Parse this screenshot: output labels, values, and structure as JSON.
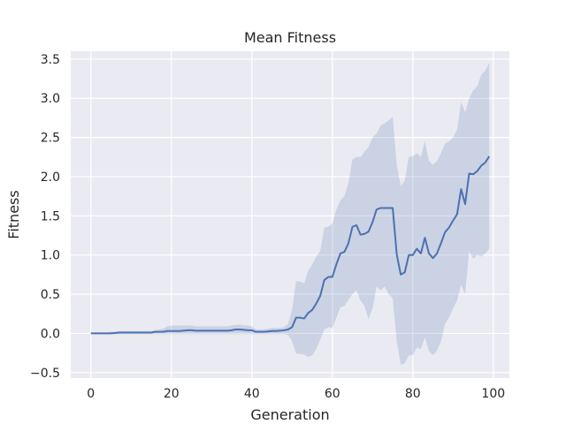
{
  "chart_data": {
    "type": "line",
    "title": "Mean Fitness",
    "xlabel": "Generation",
    "ylabel": "Fitness",
    "xlim": [
      -5,
      104
    ],
    "ylim": [
      -0.57,
      3.6
    ],
    "grid": true,
    "legend": "none",
    "xticks": [
      0,
      20,
      40,
      60,
      80,
      100
    ],
    "xtick_labels": [
      "0",
      "20",
      "40",
      "60",
      "80",
      "100"
    ],
    "yticks": [
      -0.5,
      0.0,
      0.5,
      1.0,
      1.5,
      2.0,
      2.5,
      3.0,
      3.5
    ],
    "ytick_labels": [
      "−0.5",
      "0.0",
      "0.5",
      "1.0",
      "1.5",
      "2.0",
      "2.5",
      "3.0",
      "3.5"
    ],
    "colors": {
      "plot_background": "#eaeaf2",
      "line": "#4c72b0",
      "band": "#4c72b0",
      "grid": "#ffffff",
      "text": "#262626"
    },
    "series": [
      {
        "x": [
          0,
          1,
          2,
          3,
          4,
          5,
          6,
          7,
          8,
          9,
          10,
          11,
          12,
          13,
          14,
          15,
          16,
          17,
          18,
          19,
          20,
          21,
          22,
          23,
          24,
          25,
          26,
          27,
          28,
          29,
          30,
          31,
          32,
          33,
          34,
          35,
          36,
          37,
          38,
          39,
          40,
          41,
          42,
          43,
          44,
          45,
          46,
          47,
          48,
          49,
          50,
          51,
          52,
          53,
          54,
          55,
          56,
          57,
          58,
          59,
          60,
          61,
          62,
          63,
          64,
          65,
          66,
          67,
          68,
          69,
          70,
          71,
          72,
          73,
          74,
          75,
          76,
          77,
          78,
          79,
          80,
          81,
          82,
          83,
          84,
          85,
          86,
          87,
          88,
          89,
          90,
          91,
          92,
          93,
          94,
          95,
          96,
          97,
          98,
          99
        ],
        "y": [
          0.0,
          0.0,
          0.0,
          0.0,
          0.0,
          0.0,
          0.005,
          0.01,
          0.01,
          0.01,
          0.01,
          0.01,
          0.01,
          0.01,
          0.01,
          0.01,
          0.02,
          0.02,
          0.02,
          0.03,
          0.03,
          0.03,
          0.03,
          0.035,
          0.04,
          0.04,
          0.035,
          0.035,
          0.035,
          0.035,
          0.035,
          0.035,
          0.035,
          0.035,
          0.035,
          0.04,
          0.05,
          0.05,
          0.045,
          0.04,
          0.04,
          0.02,
          0.02,
          0.02,
          0.025,
          0.03,
          0.03,
          0.035,
          0.04,
          0.05,
          0.08,
          0.2,
          0.2,
          0.19,
          0.26,
          0.3,
          0.38,
          0.48,
          0.68,
          0.72,
          0.72,
          0.88,
          1.02,
          1.04,
          1.15,
          1.36,
          1.38,
          1.26,
          1.27,
          1.3,
          1.42,
          1.58,
          1.6,
          1.6,
          1.6,
          1.6,
          1.01,
          0.75,
          0.78,
          1.0,
          1.0,
          1.08,
          1.02,
          1.22,
          1.02,
          0.96,
          1.02,
          1.15,
          1.29,
          1.35,
          1.44,
          1.52,
          1.84,
          1.65,
          2.04,
          2.03,
          2.07,
          2.14,
          2.18,
          2.26
        ],
        "lower": [
          -0.01,
          -0.01,
          -0.01,
          -0.01,
          -0.01,
          -0.01,
          -0.01,
          -0.01,
          -0.01,
          -0.01,
          -0.01,
          -0.01,
          -0.01,
          -0.01,
          -0.01,
          -0.01,
          -0.01,
          -0.01,
          -0.01,
          -0.01,
          -0.01,
          -0.01,
          -0.01,
          -0.01,
          -0.01,
          -0.01,
          -0.01,
          -0.01,
          -0.01,
          -0.01,
          -0.01,
          -0.01,
          -0.01,
          -0.01,
          -0.01,
          -0.01,
          -0.01,
          -0.01,
          -0.01,
          -0.01,
          -0.01,
          -0.01,
          -0.01,
          -0.01,
          -0.01,
          -0.01,
          -0.01,
          -0.01,
          -0.01,
          -0.02,
          -0.1,
          -0.26,
          -0.26,
          -0.27,
          -0.3,
          -0.28,
          -0.2,
          -0.08,
          0.05,
          0.08,
          0.07,
          0.2,
          0.33,
          0.35,
          0.43,
          0.5,
          0.55,
          0.42,
          0.35,
          0.18,
          0.32,
          0.6,
          0.55,
          0.6,
          0.5,
          0.45,
          -0.1,
          -0.4,
          -0.38,
          -0.28,
          -0.28,
          -0.18,
          -0.2,
          -0.05,
          -0.22,
          -0.28,
          -0.22,
          -0.1,
          0.12,
          0.2,
          0.32,
          0.42,
          0.62,
          0.5,
          1.05,
          0.95,
          1.0,
          0.98,
          1.02,
          1.08
        ],
        "upper": [
          0.01,
          0.01,
          0.01,
          0.01,
          0.01,
          0.02,
          0.02,
          0.03,
          0.03,
          0.03,
          0.03,
          0.03,
          0.03,
          0.03,
          0.03,
          0.03,
          0.04,
          0.05,
          0.06,
          0.09,
          0.1,
          0.1,
          0.1,
          0.1,
          0.1,
          0.1,
          0.09,
          0.09,
          0.09,
          0.09,
          0.09,
          0.09,
          0.09,
          0.09,
          0.09,
          0.1,
          0.11,
          0.11,
          0.1,
          0.1,
          0.09,
          0.05,
          0.05,
          0.05,
          0.06,
          0.07,
          0.07,
          0.07,
          0.08,
          0.12,
          0.3,
          0.67,
          0.66,
          0.64,
          0.8,
          0.88,
          0.98,
          1.05,
          1.35,
          1.36,
          1.4,
          1.58,
          1.7,
          1.75,
          1.92,
          2.22,
          2.25,
          2.25,
          2.32,
          2.38,
          2.5,
          2.55,
          2.65,
          2.68,
          2.72,
          2.76,
          2.15,
          1.88,
          1.95,
          2.25,
          2.26,
          2.3,
          2.25,
          2.45,
          2.2,
          2.15,
          2.2,
          2.3,
          2.42,
          2.45,
          2.5,
          2.6,
          2.95,
          2.82,
          3.0,
          3.1,
          3.15,
          3.3,
          3.35,
          3.45
        ]
      }
    ]
  }
}
